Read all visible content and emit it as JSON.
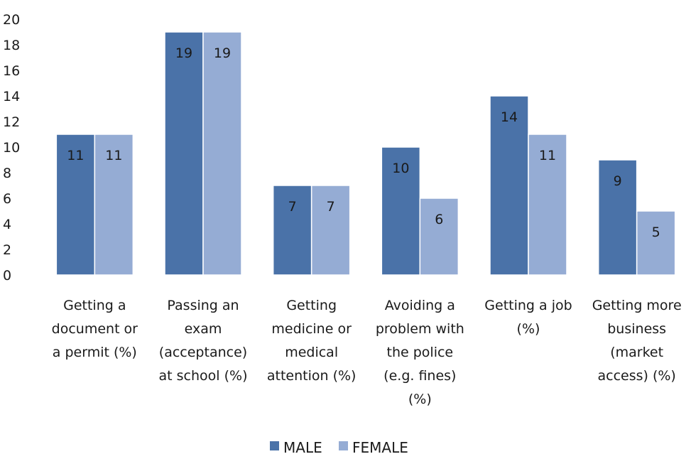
{
  "chart_data": {
    "type": "bar",
    "categories": [
      [
        "Getting a",
        "document or",
        "a permit (%)"
      ],
      [
        "Passing an",
        "exam",
        "(acceptance)",
        "at school (%)"
      ],
      [
        "Getting",
        "medicine or",
        "medical",
        "attention (%)"
      ],
      [
        "Avoiding a",
        "problem with",
        "the police",
        "(e.g. fines)",
        "(%)"
      ],
      [
        "Getting a job",
        "(%)"
      ],
      [
        "Getting more",
        "business",
        "(market",
        "access) (%)"
      ]
    ],
    "series": [
      {
        "name": "MALE",
        "color": "#4a72a8",
        "values": [
          11,
          19,
          7,
          10,
          14,
          9
        ]
      },
      {
        "name": "FEMALE",
        "color": "#95acd4",
        "values": [
          11,
          19,
          7,
          6,
          11,
          5
        ]
      }
    ],
    "yticks": [
      "0",
      "2",
      "4",
      "6",
      "8",
      "10",
      "12",
      "14",
      "16",
      "18",
      "20"
    ],
    "ylim": [
      0,
      20
    ],
    "grid": false,
    "legend": "bottom-center",
    "data_labels": true
  }
}
